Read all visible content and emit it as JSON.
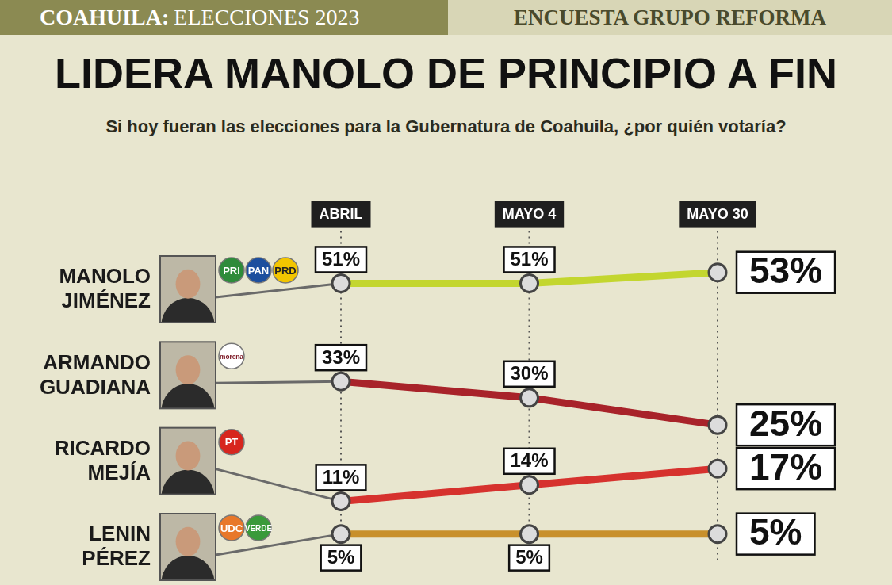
{
  "header": {
    "section": "COAHUILA:",
    "label": "ELECCIONES 2023",
    "source": "ENCUESTA GRUPO REFORMA"
  },
  "chart_data": {
    "type": "line",
    "title": "LIDERA MANOLO DE PRINCIPIO A FIN",
    "subtitle": "Si hoy fueran las elecciones para la Gubernatura de Coahuila, ¿por quién votaría?",
    "categories": [
      "ABRIL",
      "MAYO 4",
      "MAYO 30"
    ],
    "series": [
      {
        "name": "MANOLO JIMÉNEZ",
        "parties": [
          "PRI",
          "PAN",
          "PRD"
        ],
        "color": "#c3d62f",
        "values": [
          51,
          51,
          53
        ],
        "value_labels": [
          "51%",
          "51%",
          "53%"
        ]
      },
      {
        "name": "ARMANDO GUADIANA",
        "parties": [
          "morena"
        ],
        "color": "#a8232a",
        "values": [
          33,
          30,
          25
        ],
        "value_labels": [
          "33%",
          "30%",
          "25%"
        ]
      },
      {
        "name": "RICARDO MEJÍA",
        "parties": [
          "PT"
        ],
        "color": "#d6322e",
        "values": [
          11,
          14,
          17
        ],
        "value_labels": [
          "11%",
          "14%",
          "17%"
        ]
      },
      {
        "name": "LENIN PÉREZ",
        "parties": [
          "UDC",
          "VERDE"
        ],
        "color": "#c8902c",
        "values": [
          5,
          5,
          5
        ],
        "value_labels": [
          "5%",
          "5%",
          "5%"
        ]
      }
    ],
    "ylim": [
      0,
      60
    ],
    "grid": true,
    "data_labels": true,
    "tick_labels": "x",
    "marker": "circle"
  }
}
